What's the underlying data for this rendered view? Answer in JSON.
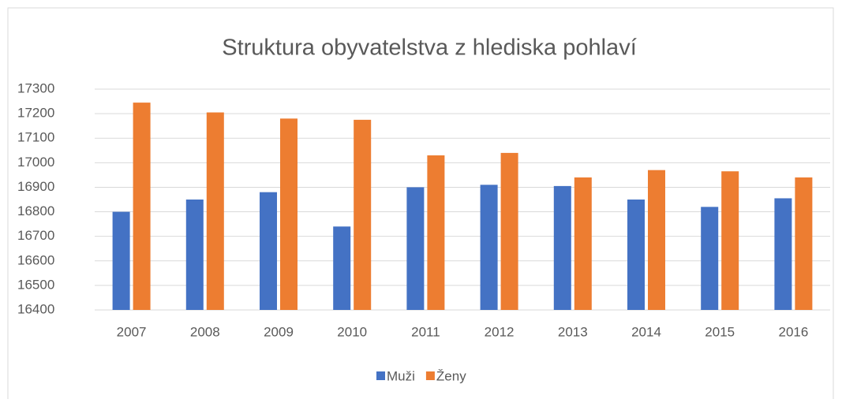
{
  "chart_data": {
    "type": "bar",
    "title": "Struktura obyvatelstva z hlediska pohlaví",
    "categories": [
      "2007",
      "2008",
      "2009",
      "2010",
      "2011",
      "2012",
      "2013",
      "2014",
      "2015",
      "2016"
    ],
    "series": [
      {
        "name": "Muži",
        "color": "#4472c4",
        "values": [
          16800,
          16850,
          16880,
          16740,
          16900,
          16910,
          16905,
          16850,
          16820,
          16855
        ]
      },
      {
        "name": "Ženy",
        "color": "#ed7d31",
        "values": [
          17245,
          17205,
          17180,
          17175,
          17030,
          17040,
          16940,
          16970,
          16965,
          16940
        ]
      }
    ],
    "ylim": [
      16400,
      17300
    ],
    "yticks": [
      16400,
      16500,
      16600,
      16700,
      16800,
      16900,
      17000,
      17100,
      17200,
      17300
    ],
    "grid": true,
    "legend": "bottom"
  }
}
